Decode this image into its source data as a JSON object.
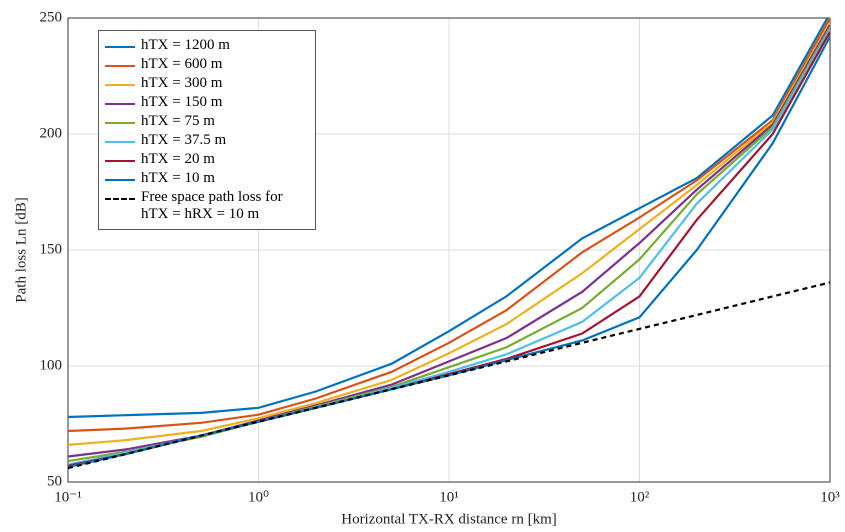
{
  "chart_data": {
    "type": "line",
    "x_label": "Horizontal TX-RX distance rn [km]",
    "y_label": "Path loss Ln [dB]",
    "x": [
      0.1,
      0.2,
      0.5,
      1,
      2,
      5,
      10,
      20,
      50,
      100,
      200,
      500,
      1000
    ],
    "xscale": "log",
    "xlim": [
      0.1,
      1000
    ],
    "xticks": [
      {
        "value": 0.1,
        "label": "10⁻¹"
      },
      {
        "value": 1,
        "label": "10⁰"
      },
      {
        "value": 10,
        "label": "10¹"
      },
      {
        "value": 100,
        "label": "10²"
      },
      {
        "value": 1000,
        "label": "10³"
      }
    ],
    "ylim": [
      50,
      250
    ],
    "yticks": [
      50,
      100,
      150,
      200,
      250
    ],
    "grid": true,
    "legend": "upper left",
    "series": [
      {
        "name": "hTX = 1200 m",
        "color": "#0072BD",
        "values": [
          78,
          78.8,
          79.8,
          82,
          89,
          101,
          115,
          130,
          155,
          168,
          181,
          208,
          252
        ]
      },
      {
        "name": "hTX = 600 m",
        "color": "#D95319",
        "values": [
          72,
          73,
          75.5,
          79,
          86,
          97.5,
          110,
          124,
          149,
          164,
          180,
          206,
          250
        ]
      },
      {
        "name": "hTX = 300 m",
        "color": "#EDB120",
        "values": [
          66,
          68,
          72,
          77.5,
          84,
          94,
          105.5,
          118,
          140,
          159,
          178,
          205,
          248
        ]
      },
      {
        "name": "hTX = 150 m",
        "color": "#7E2F8E",
        "values": [
          61,
          64,
          70,
          76.5,
          83,
          92,
          102,
          112,
          132,
          153,
          176,
          204,
          247
        ]
      },
      {
        "name": "hTX = 75 m",
        "color": "#77AC30",
        "values": [
          59,
          63,
          69.5,
          76,
          82.5,
          91,
          99.5,
          108,
          125,
          146,
          174,
          203,
          246
        ]
      },
      {
        "name": "hTX = 37.5 m",
        "color": "#4DBEEE",
        "values": [
          57.5,
          62.5,
          70,
          76,
          82,
          90.5,
          97.5,
          105,
          119,
          138,
          170,
          202,
          245
        ]
      },
      {
        "name": "hTX = 20 m",
        "color": "#A2142F",
        "values": [
          57,
          62,
          70,
          76,
          82,
          90,
          96.5,
          103,
          114,
          130,
          163,
          200,
          244
        ]
      },
      {
        "name": "hTX = 10 m",
        "color": "#0072BD",
        "values": [
          56.5,
          62,
          70,
          76,
          82,
          90,
          96,
          102.5,
          111,
          121,
          150,
          196,
          242
        ]
      },
      {
        "name": "Free space path loss for hTX = hRX = 10 m",
        "color": "#000000",
        "dash": true,
        "values": [
          56,
          62,
          70,
          76,
          82,
          90,
          96,
          102,
          110,
          116,
          122,
          130,
          136
        ]
      }
    ]
  }
}
